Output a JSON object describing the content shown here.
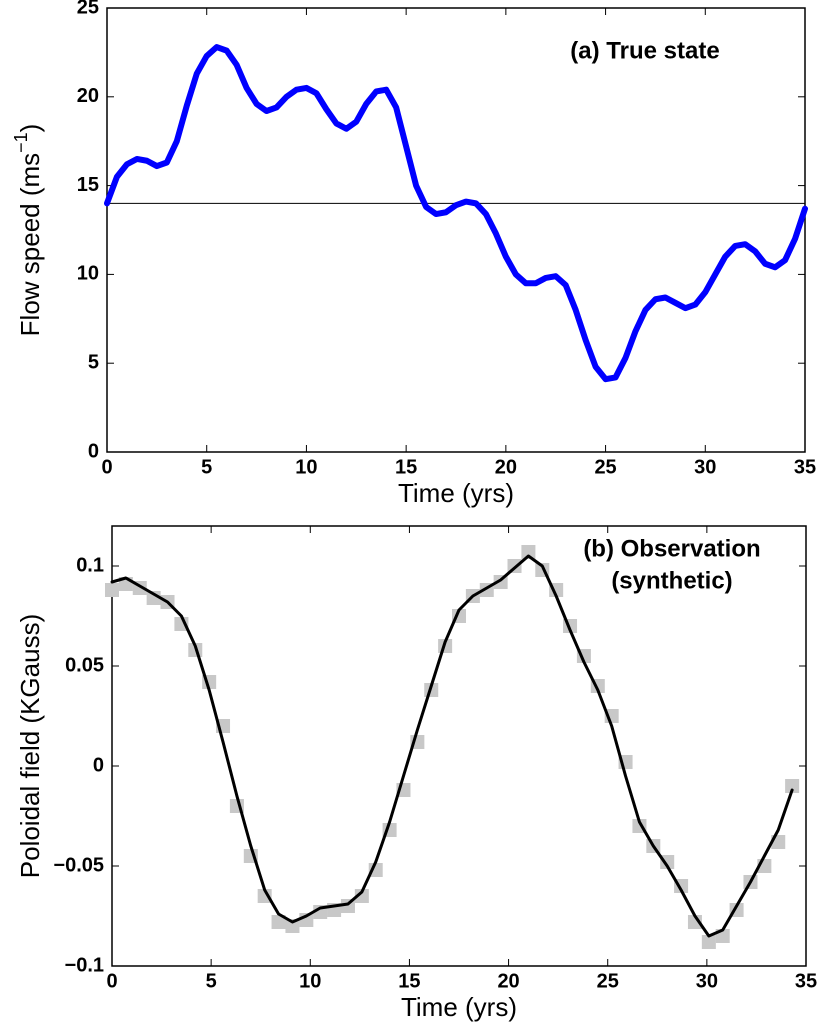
{
  "chart_data": [
    {
      "type": "line",
      "title": [
        "(a) True state"
      ],
      "x_label": "Time (yrs)",
      "y_label": {
        "text": "Flow speed (ms",
        "superscript": "−1",
        "close": ")"
      },
      "x": [
        0,
        0.5,
        1,
        1.5,
        2,
        2.5,
        3,
        3.5,
        4,
        4.5,
        5,
        5.5,
        6,
        6.5,
        7,
        7.5,
        8,
        8.5,
        9,
        9.5,
        10,
        10.5,
        11,
        11.5,
        12,
        12.5,
        13,
        13.5,
        14,
        14.5,
        15,
        15.5,
        16,
        16.5,
        17,
        17.5,
        18,
        18.5,
        19,
        19.5,
        20,
        20.5,
        21,
        21.5,
        22,
        22.5,
        23,
        23.5,
        24,
        24.5,
        25,
        25.5,
        26,
        26.5,
        27,
        27.5,
        28,
        28.5,
        29,
        29.5,
        30,
        30.5,
        31,
        31.5,
        32,
        32.5,
        33,
        33.5,
        34,
        34.5,
        35
      ],
      "series": [
        {
          "color": "#0000ff",
          "marker": "none",
          "values": [
            14,
            15.5,
            16.2,
            16.5,
            16.4,
            16.1,
            16.3,
            17.5,
            19.5,
            21.3,
            22.3,
            22.8,
            22.6,
            21.8,
            20.5,
            19.6,
            19.2,
            19.4,
            20,
            20.4,
            20.5,
            20.2,
            19.3,
            18.5,
            18.2,
            18.6,
            19.6,
            20.3,
            20.4,
            19.4,
            17.2,
            15,
            13.8,
            13.4,
            13.5,
            13.9,
            14.1,
            14,
            13.4,
            12.3,
            11,
            10,
            9.5,
            9.5,
            9.8,
            9.9,
            9.4,
            8,
            6.3,
            4.8,
            4.1,
            4.2,
            5.3,
            6.8,
            8,
            8.6,
            8.7,
            8.4,
            8.1,
            8.3,
            9,
            10,
            11,
            11.6,
            11.7,
            11.3,
            10.6,
            10.4,
            10.8,
            12,
            13.7
          ]
        }
      ],
      "reference_line": 14,
      "xlim": [
        0,
        35
      ],
      "xticks": [
        0,
        5,
        10,
        15,
        20,
        25,
        30,
        35
      ],
      "ylim": [
        0,
        25
      ],
      "yticks": [
        0,
        5,
        10,
        15,
        20,
        25
      ]
    },
    {
      "type": "line",
      "title": [
        "(b) Observation",
        "(synthetic)"
      ],
      "x_label": "Time (yrs)",
      "y_label": {
        "text": "Poloidal field (KGauss)"
      },
      "x": [
        0,
        0.7,
        1.4,
        2.1,
        2.8,
        3.5,
        4.2,
        4.9,
        5.6,
        6.3,
        7,
        7.7,
        8.4,
        9.1,
        9.8,
        10.5,
        11.2,
        11.9,
        12.6,
        13.3,
        14,
        14.7,
        15.4,
        16.1,
        16.8,
        17.5,
        18.2,
        18.9,
        19.6,
        20.3,
        21,
        21.7,
        22.4,
        23.1,
        23.8,
        24.5,
        25.2,
        25.9,
        26.6,
        27.3,
        28,
        28.7,
        29.4,
        30.1,
        30.8,
        31.5,
        32.2,
        32.9,
        33.6,
        34.3
      ],
      "series": [
        {
          "color": "#c8c8c8",
          "marker": "square",
          "values": [
            0.088,
            0.091,
            0.089,
            0.084,
            0.082,
            0.071,
            0.058,
            0.042,
            0.02,
            -0.02,
            -0.045,
            -0.065,
            -0.078,
            -0.08,
            -0.077,
            -0.073,
            -0.072,
            -0.07,
            -0.065,
            -0.052,
            -0.032,
            -0.012,
            0.012,
            0.038,
            0.06,
            0.075,
            0.085,
            0.088,
            0.092,
            0.1,
            0.107,
            0.098,
            0.088,
            0.07,
            0.055,
            0.04,
            0.025,
            0.002,
            -0.03,
            -0.04,
            -0.048,
            -0.06,
            -0.078,
            -0.088,
            -0.085,
            -0.072,
            -0.058,
            -0.05,
            -0.038,
            -0.01
          ]
        },
        {
          "color": "#000000",
          "marker": "none",
          "values": [
            0.092,
            0.094,
            0.09,
            0.086,
            0.082,
            0.075,
            0.06,
            0.038,
            0.012,
            -0.015,
            -0.04,
            -0.062,
            -0.074,
            -0.078,
            -0.075,
            -0.071,
            -0.07,
            -0.069,
            -0.063,
            -0.048,
            -0.028,
            -0.005,
            0.018,
            0.04,
            0.062,
            0.078,
            0.085,
            0.089,
            0.093,
            0.099,
            0.105,
            0.1,
            0.085,
            0.068,
            0.052,
            0.038,
            0.02,
            -0.005,
            -0.028,
            -0.04,
            -0.05,
            -0.062,
            -0.075,
            -0.085,
            -0.082,
            -0.07,
            -0.058,
            -0.045,
            -0.032,
            -0.012
          ]
        }
      ],
      "xlim": [
        0,
        35
      ],
      "xticks": [
        0,
        5,
        10,
        15,
        20,
        25,
        30,
        35
      ],
      "ylim": [
        -0.1,
        0.12
      ],
      "yticks": [
        {
          "value": -0.1,
          "label": "−0.1"
        },
        {
          "value": -0.05,
          "label": "−0.05"
        },
        0,
        0.05,
        0.1
      ]
    }
  ]
}
